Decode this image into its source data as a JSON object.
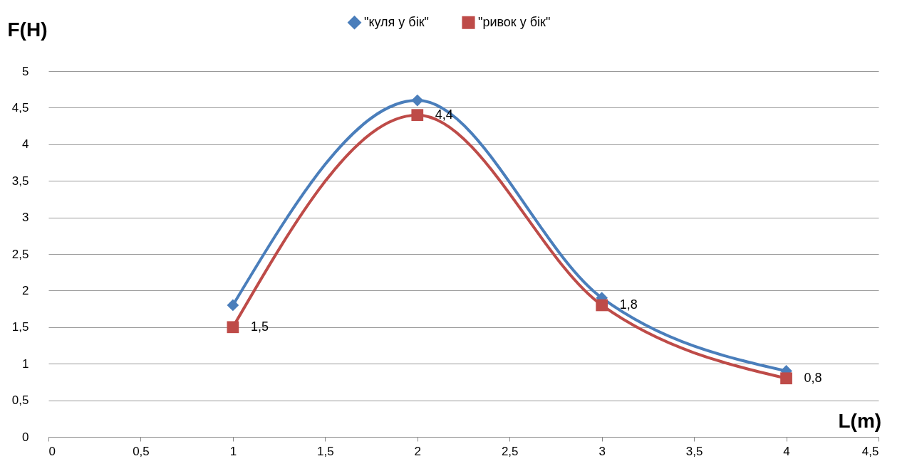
{
  "chart_data": {
    "type": "line",
    "xlabel": "L(m)",
    "ylabel": "F(H)",
    "x": [
      1,
      2,
      3,
      4
    ],
    "series": [
      {
        "name": "\"куля у бік\"",
        "color": "#4a7ebb",
        "marker": "diamond",
        "values": [
          1.8,
          4.6,
          1.9,
          0.9
        ]
      },
      {
        "name": "\"ривок у бік\"",
        "color": "#be4b48",
        "marker": "square",
        "values": [
          1.5,
          4.4,
          1.8,
          0.8
        ],
        "value_labels": [
          "1,5",
          "4,4",
          "1,8",
          "0,8"
        ]
      }
    ],
    "xlim": [
      0,
      4.5
    ],
    "xticks": [
      0,
      {
        "value": 0.5,
        "label": "0,5"
      },
      1,
      {
        "value": 1.5,
        "label": "1,5"
      },
      2,
      {
        "value": 2.5,
        "label": "2,5"
      },
      3,
      {
        "value": 3.5,
        "label": "3,5"
      },
      4,
      {
        "value": 4.5,
        "label": "4,5"
      }
    ],
    "ylim": [
      0,
      5
    ],
    "yticks": [
      0,
      {
        "value": 0.5,
        "label": "0,5"
      },
      1,
      {
        "value": 1.5,
        "label": "1,5"
      },
      2,
      {
        "value": 2.5,
        "label": "2,5"
      },
      3,
      {
        "value": 3.5,
        "label": "3,5"
      },
      4,
      {
        "value": 4.5,
        "label": "4,5"
      },
      5
    ],
    "grid": "y",
    "legend": "top",
    "line_style": "solid"
  }
}
